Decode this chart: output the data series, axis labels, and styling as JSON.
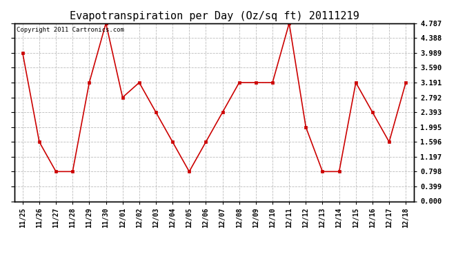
{
  "title": "Evapotranspiration per Day (Oz/sq ft) 20111219",
  "copyright_text": "Copyright 2011 Cartronics.com",
  "x_labels": [
    "11/25",
    "11/26",
    "11/27",
    "11/28",
    "11/29",
    "11/30",
    "12/01",
    "12/02",
    "12/03",
    "12/04",
    "12/05",
    "12/06",
    "12/07",
    "12/08",
    "12/09",
    "12/10",
    "12/11",
    "12/12",
    "12/13",
    "12/14",
    "12/15",
    "12/16",
    "12/17",
    "12/18"
  ],
  "y_values": [
    3.989,
    1.596,
    0.798,
    0.798,
    3.191,
    4.787,
    2.792,
    3.191,
    2.393,
    1.596,
    0.798,
    1.596,
    2.393,
    3.191,
    3.191,
    3.191,
    4.787,
    1.995,
    0.798,
    0.798,
    3.191,
    2.393,
    1.596,
    3.191
  ],
  "y_ticks": [
    0.0,
    0.399,
    0.798,
    1.197,
    1.596,
    1.995,
    2.393,
    2.792,
    3.191,
    3.59,
    3.989,
    4.388,
    4.787
  ],
  "ylim": [
    0.0,
    4.787
  ],
  "line_color": "#cc0000",
  "marker_color": "#cc0000",
  "bg_color": "#ffffff",
  "grid_color": "#bbbbbb",
  "title_fontsize": 11,
  "copyright_fontsize": 6.5,
  "tick_fontsize": 7,
  "ytick_fontsize": 7.5
}
